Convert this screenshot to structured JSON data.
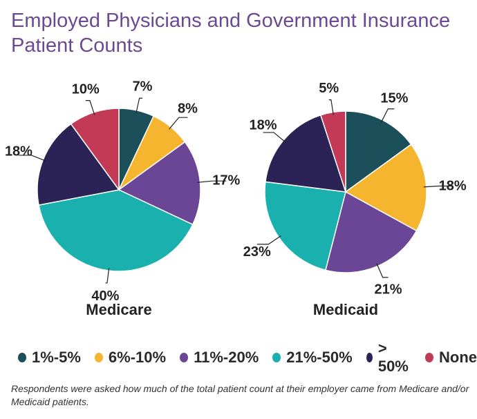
{
  "title": "Employed Physicians and Government Insurance Patient Counts",
  "note": "Respondents were asked how much of the total patient count at their employer came from Medicare and/or Medicaid patients.",
  "chart_data": [
    {
      "type": "pie",
      "title": "Medicare",
      "categories": [
        "1%-5%",
        "6%-10%",
        "11%-20%",
        "21%-50%",
        "> 50%",
        "None"
      ],
      "values": [
        7,
        8,
        17,
        40,
        18,
        10
      ],
      "labels": [
        "7%",
        "8%",
        "17%",
        "40%",
        "18%",
        "10%"
      ]
    },
    {
      "type": "pie",
      "title": "Medicaid",
      "categories": [
        "1%-5%",
        "6%-10%",
        "11%-20%",
        "21%-50%",
        "> 50%",
        "None"
      ],
      "values": [
        15,
        18,
        21,
        23,
        18,
        5
      ],
      "labels": [
        "15%",
        "18%",
        "21%",
        "23%",
        "18%",
        "5%"
      ]
    }
  ],
  "legend": {
    "placement": "bottom",
    "items": [
      {
        "label": "1%-5%",
        "color": "#1b4f5a"
      },
      {
        "label": "6%-10%",
        "color": "#f5b52e"
      },
      {
        "label": "11%-20%",
        "color": "#6b4596"
      },
      {
        "label": "21%-50%",
        "color": "#1ab0ad"
      },
      {
        "label": "> 50%",
        "color": "#2b2255"
      },
      {
        "label": "None",
        "color": "#c23a56"
      }
    ]
  }
}
